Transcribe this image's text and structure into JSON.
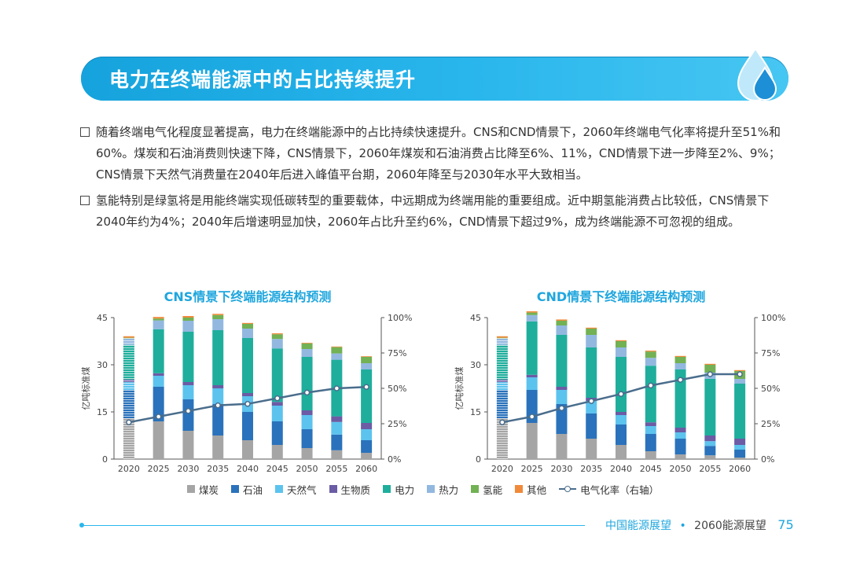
{
  "header": {
    "title": "电力在终端能源中的占比持续提升"
  },
  "bullets": [
    "随着终端电气化程度显著提高，电力在终端能源中的占比持续快速提升。CNS和CND情景下，2060年终端电气化率将提升至51%和60%。煤炭和石油消费则快速下降，CNS情景下，2060年煤炭和石油消费占比降至6%、11%，CND情景下进一步降至2%、9%；CNS情景下天然气消费量在2040年后进入峰值平台期，2060年降至与2030年水平大致相当。",
    "氢能特别是绿氢将是用能终端实现低碳转型的重要载体，中远期成为终端用能的重要组成。近中期氢能消费占比较低，CNS情景下2040年约为4%；2040年后增速明显加快，2060年占比升至约6%，CND情景下超过9%，成为终端能源不可忽视的组成。"
  ],
  "legend": {
    "items": [
      {
        "label": "煤炭",
        "color": "#a5a5a5"
      },
      {
        "label": "石油",
        "color": "#2a72bb"
      },
      {
        "label": "天然气",
        "color": "#5cc3ee"
      },
      {
        "label": "生物质",
        "color": "#6b5ca5"
      },
      {
        "label": "电力",
        "color": "#1fae9c"
      },
      {
        "label": "热力",
        "color": "#92b8e0"
      },
      {
        "label": "氢能",
        "color": "#72b154"
      },
      {
        "label": "其他",
        "color": "#f08a3a"
      }
    ],
    "line_label": "电气化率（右轴）"
  },
  "footer": {
    "left": "中国能源展望",
    "separator": "•",
    "right": "2060能源展望",
    "page": "75"
  },
  "chart_data": [
    {
      "type": "bar",
      "title": "CNS情景下终端能源结构预测",
      "ylabel": "亿吨标准煤",
      "ylim": [
        0,
        45
      ],
      "yticks": [
        "0",
        "15",
        "30",
        "45"
      ],
      "y2ticks": [
        "0%",
        "25%",
        "50%",
        "75%",
        "100%"
      ],
      "categories": [
        "2020",
        "2025",
        "2030",
        "2035",
        "2040",
        "2045",
        "2050",
        "2055",
        "2060"
      ],
      "series": [
        {
          "name": "煤炭",
          "values": [
            13,
            12,
            9,
            7.5,
            6,
            4.5,
            3.5,
            2.8,
            2
          ]
        },
        {
          "name": "石油",
          "values": [
            9,
            11,
            10,
            10,
            9,
            7.5,
            6,
            5,
            4
          ]
        },
        {
          "name": "天然气",
          "values": [
            2.5,
            3.5,
            4.5,
            5,
            5,
            5,
            4.5,
            4,
            3.5
          ]
        },
        {
          "name": "生物质",
          "values": [
            0.8,
            0.8,
            1,
            1,
            1,
            1.2,
            1.5,
            1.8,
            2
          ]
        },
        {
          "name": "电力",
          "values": [
            11,
            14,
            16,
            17.5,
            17.5,
            17,
            17,
            18,
            17
          ]
        },
        {
          "name": "热力",
          "values": [
            2,
            2.8,
            3.5,
            3.5,
            3,
            3,
            2.5,
            2,
            2
          ]
        },
        {
          "name": "氢能",
          "values": [
            0.3,
            0.6,
            1,
            1.3,
            1.5,
            1.5,
            1.8,
            2,
            2
          ]
        },
        {
          "name": "其他",
          "values": [
            0.6,
            0.5,
            0.5,
            0.4,
            0.3,
            0.3,
            0.2,
            0.2,
            0.2
          ]
        }
      ],
      "line": {
        "name": "电气化率（右轴）",
        "values": [
          26,
          30,
          34,
          38,
          39,
          43,
          47,
          50,
          51
        ]
      }
    },
    {
      "type": "bar",
      "title": "CND情景下终端能源结构预测",
      "ylabel": "亿吨标准煤",
      "ylim": [
        0,
        45
      ],
      "yticks": [
        "0",
        "15",
        "30",
        "45"
      ],
      "y2ticks": [
        "0%",
        "25%",
        "50%",
        "75%",
        "100%"
      ],
      "categories": [
        "2020",
        "2025",
        "2030",
        "2035",
        "2040",
        "2045",
        "2050",
        "2055",
        "2060"
      ],
      "series": [
        {
          "name": "煤炭",
          "values": [
            13,
            11.5,
            8,
            6.5,
            4.5,
            2.5,
            1.5,
            1.2,
            0.5
          ]
        },
        {
          "name": "石油",
          "values": [
            9,
            10.5,
            9.5,
            8,
            6.5,
            5.5,
            5,
            3,
            2.5
          ]
        },
        {
          "name": "天然气",
          "values": [
            2.5,
            4,
            4.5,
            4,
            3,
            2.5,
            2,
            1.5,
            1.5
          ]
        },
        {
          "name": "生物质",
          "values": [
            0.8,
            0.8,
            1,
            1,
            1,
            1.2,
            1.5,
            1.8,
            2
          ]
        },
        {
          "name": "电力",
          "values": [
            11,
            17,
            16.5,
            16,
            17.5,
            18,
            18.5,
            18,
            17.5
          ]
        },
        {
          "name": "热力",
          "values": [
            2,
            2,
            3,
            4,
            3,
            2.5,
            2,
            2,
            1.5
          ]
        },
        {
          "name": "氢能",
          "values": [
            0.3,
            0.8,
            1.5,
            2,
            2,
            2,
            2,
            2.5,
            2.5
          ]
        },
        {
          "name": "其他",
          "values": [
            0.6,
            0.4,
            0.4,
            0.3,
            0.3,
            0.3,
            0.3,
            0.3,
            0.3
          ]
        }
      ],
      "line": {
        "name": "电气化率（右轴）",
        "values": [
          26,
          30,
          36,
          41,
          46,
          52,
          56,
          60,
          60
        ]
      }
    }
  ]
}
